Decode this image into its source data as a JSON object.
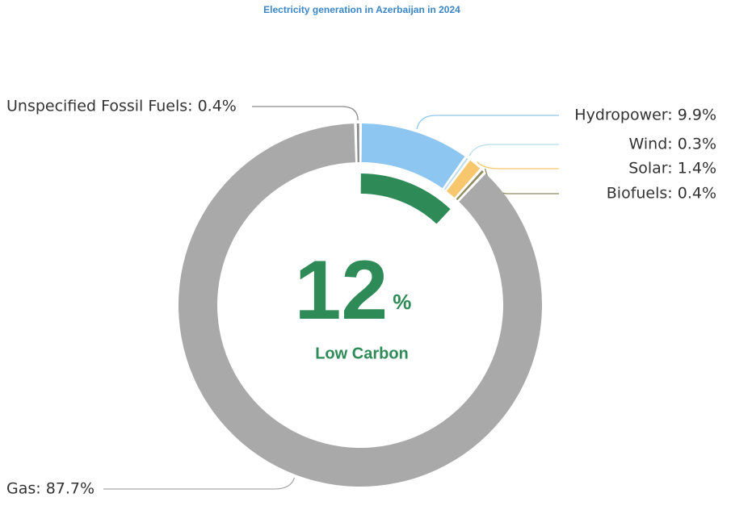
{
  "chart_data": {
    "type": "donut",
    "title": "Electricity generation in Azerbaijan in 2024",
    "values": [
      9.9,
      0.3,
      1.4,
      0.4,
      87.7,
      0.4
    ],
    "value_labels": [
      "Hydropower: 9.9%",
      "Wind: 0.3%",
      "Solar: 1.4%",
      "Biofuels: 0.4%",
      "Gas: 87.7%",
      "Unspecified Fossil Fuels: 0.4%"
    ],
    "colors": [
      "#8dc6f1",
      "#b9ddee",
      "#f8c66d",
      "#8e8c5c",
      "#a9a9a9",
      "#8a8a8a"
    ],
    "low_carbon": {
      "value": 12,
      "unit": "%",
      "label": "Low Carbon",
      "color": "#2e8b57"
    }
  }
}
